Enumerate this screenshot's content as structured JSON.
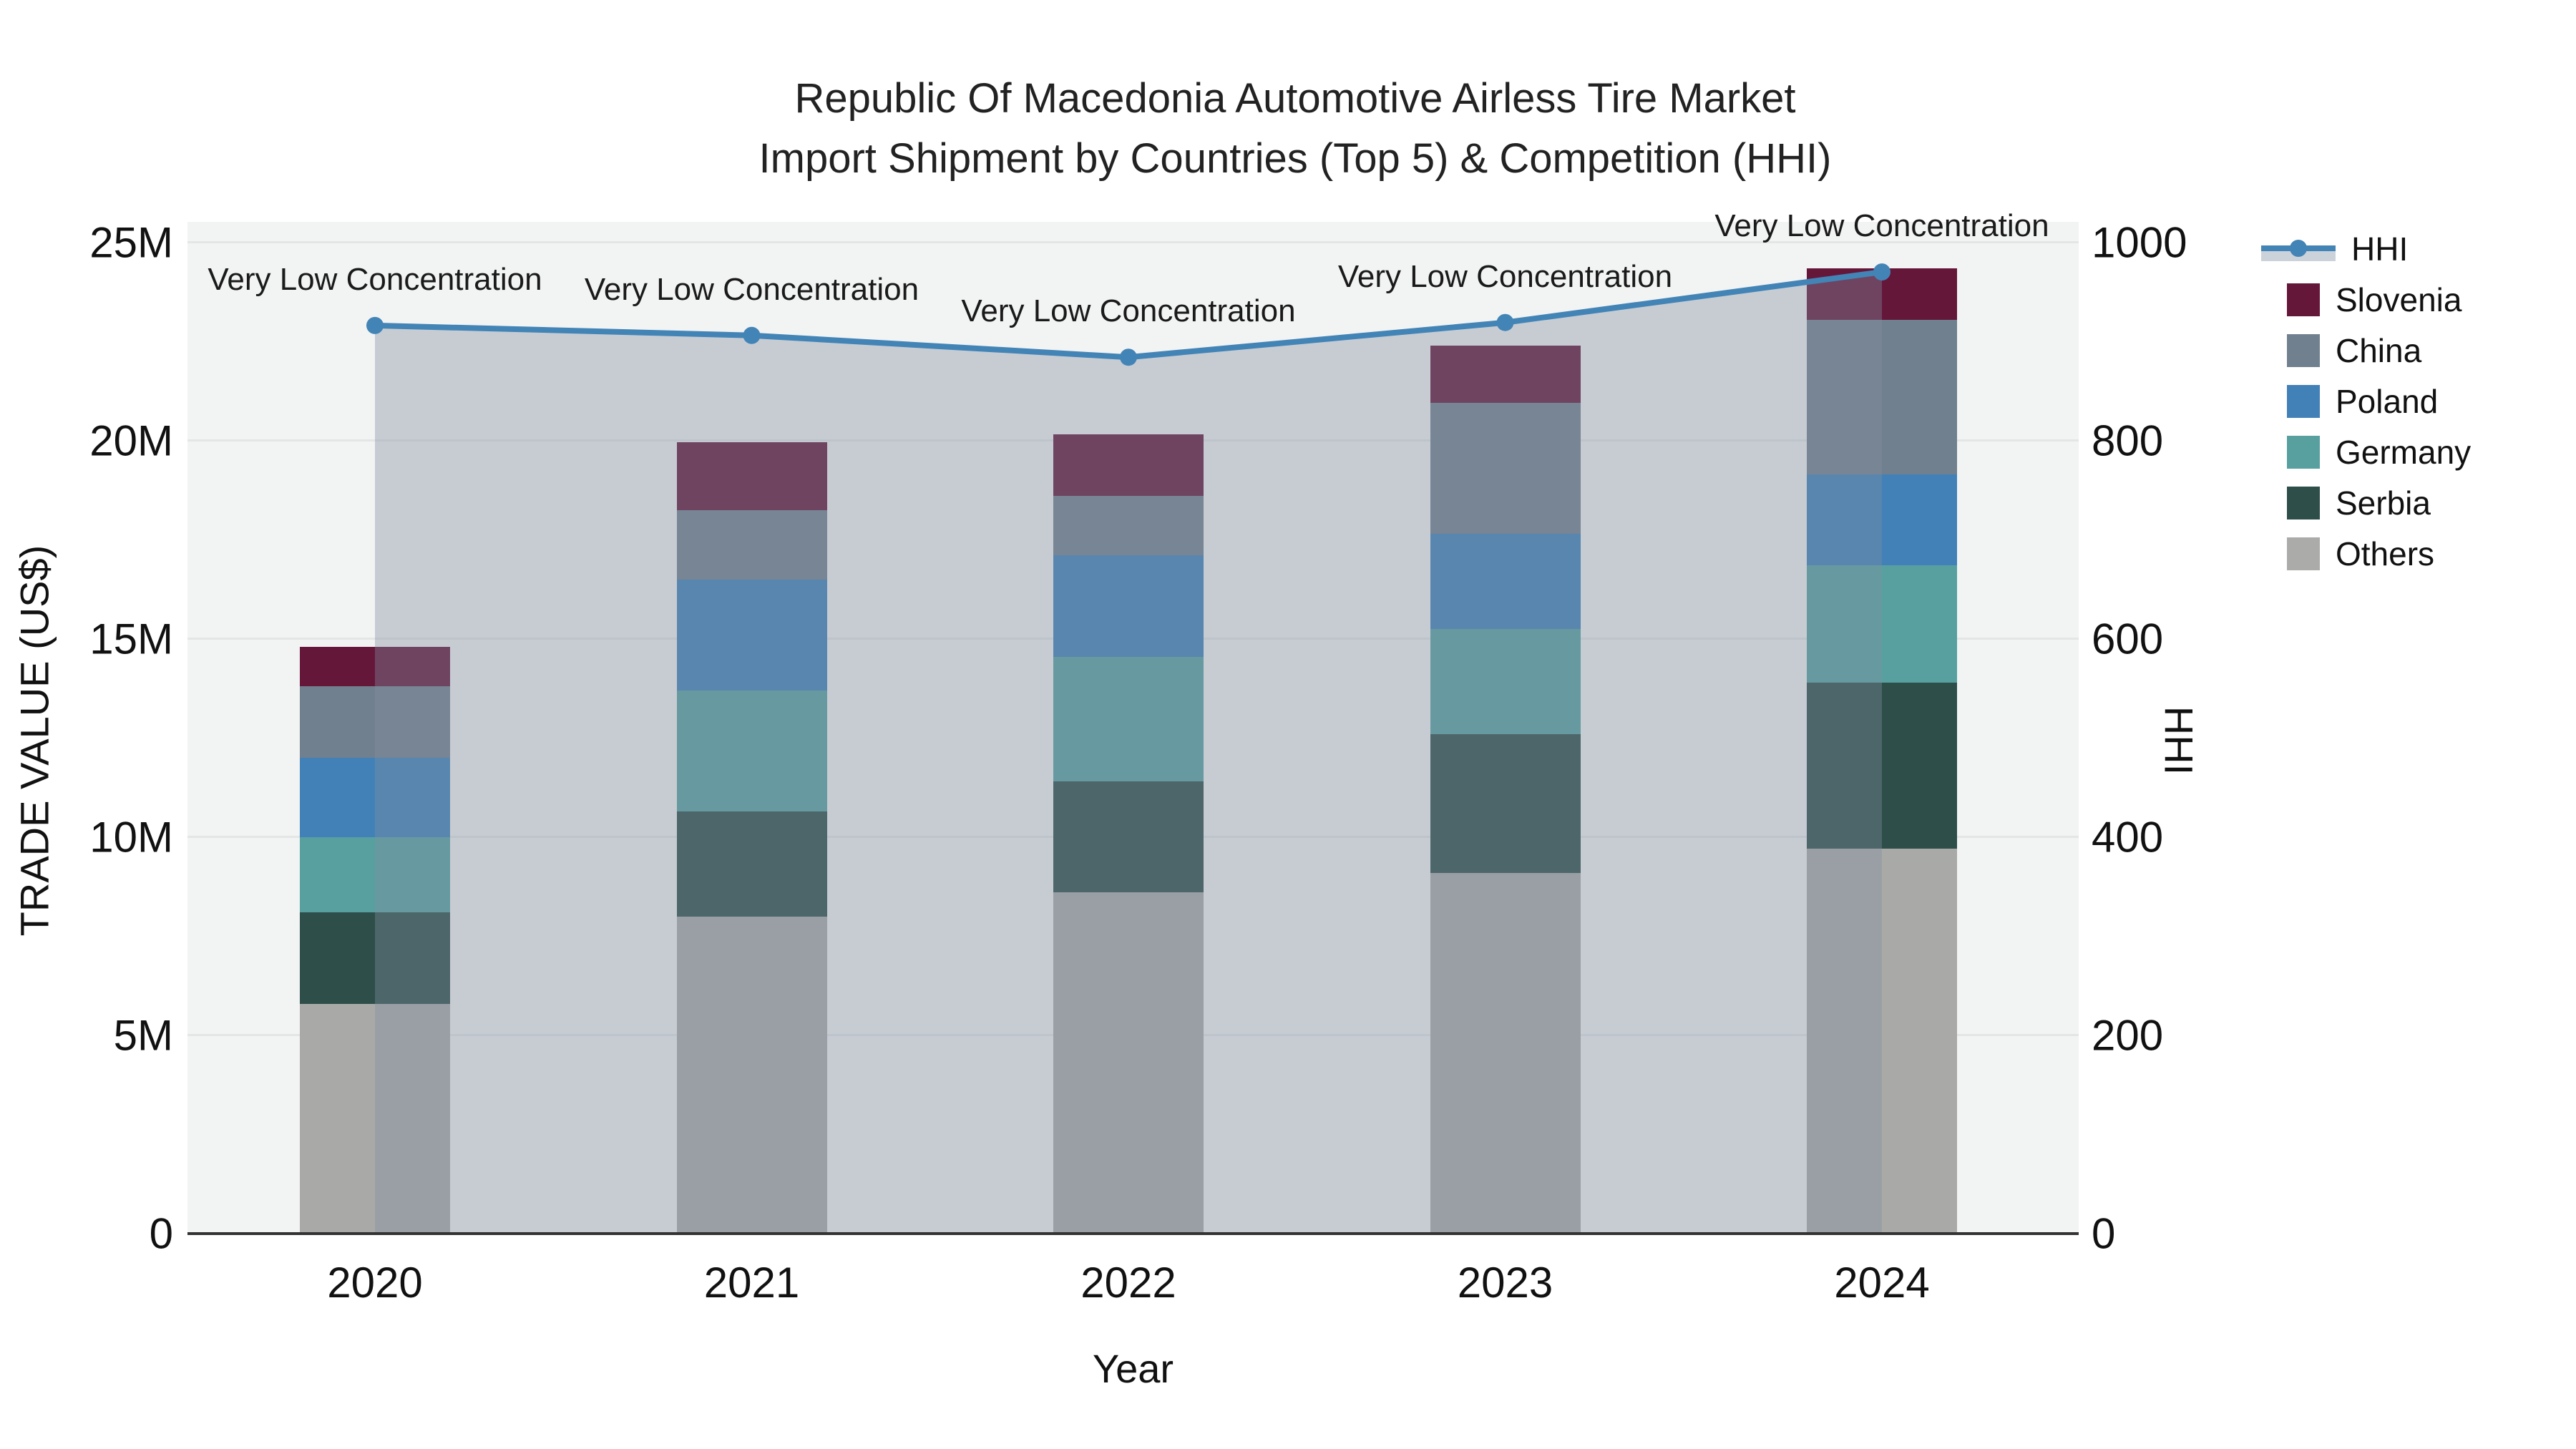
{
  "title": {
    "line1": "Republic Of Macedonia Automotive Airless Tire Market",
    "line2": "Import Shipment by Countries (Top 5) & Competition (HHI)"
  },
  "chart_data": {
    "type": "bar",
    "stacked": true,
    "orientation": "vertical",
    "categories": [
      "2020",
      "2021",
      "2022",
      "2023",
      "2024"
    ],
    "unit": "million US$",
    "series": [
      {
        "name": "Others",
        "color": "#a9aaa7",
        "values": [
          5.8,
          8.0,
          8.6,
          9.1,
          9.7
        ]
      },
      {
        "name": "Serbia",
        "color": "#2e4e4a",
        "values": [
          2.3,
          2.65,
          2.8,
          3.5,
          4.2
        ]
      },
      {
        "name": "Germany",
        "color": "#58a0a0",
        "values": [
          1.9,
          3.05,
          3.15,
          2.65,
          2.95
        ]
      },
      {
        "name": "Poland",
        "color": "#4281b7",
        "values": [
          2.0,
          2.8,
          2.55,
          2.4,
          2.3
        ]
      },
      {
        "name": "China",
        "color": "#71808f",
        "values": [
          1.8,
          1.75,
          1.5,
          3.3,
          3.9
        ]
      },
      {
        "name": "Slovenia",
        "color": "#65173a",
        "values": [
          1.0,
          1.7,
          1.55,
          1.45,
          1.3
        ]
      }
    ],
    "line_series": {
      "name": "HHI",
      "axis": "right",
      "color": "#4384b6",
      "area_fill_color": "rgba(130,142,160,0.38)",
      "values": [
        916,
        906,
        884,
        919,
        970
      ]
    },
    "annotations": [
      {
        "text": "Very Low Concentration",
        "x": "2020"
      },
      {
        "text": "Very Low Concentration",
        "x": "2021"
      },
      {
        "text": "Very Low Concentration",
        "x": "2022"
      },
      {
        "text": "Very Low Concentration",
        "x": "2023"
      },
      {
        "text": "Very Low Concentration",
        "x": "2024"
      }
    ],
    "left_axis": {
      "title": "TRADE VALUE (US$)",
      "tick_labels": [
        "0",
        "5M",
        "10M",
        "15M",
        "20M",
        "25M"
      ],
      "tick_values": [
        0,
        5,
        10,
        15,
        20,
        25
      ],
      "range_millions": [
        0,
        25.5
      ]
    },
    "right_axis": {
      "title": "HHI",
      "tick_labels": [
        "0",
        "200",
        "400",
        "600",
        "800",
        "1000"
      ],
      "tick_values": [
        0,
        200,
        400,
        600,
        800,
        1000
      ],
      "range": [
        0,
        1020
      ]
    },
    "x_axis": {
      "title": "Year"
    },
    "legend": [
      {
        "name": "HHI",
        "type": "line",
        "color": "#4384b6"
      },
      {
        "name": "Slovenia",
        "type": "swatch",
        "color": "#65173a"
      },
      {
        "name": "China",
        "type": "swatch",
        "color": "#71808f"
      },
      {
        "name": "Poland",
        "type": "swatch",
        "color": "#4281b7"
      },
      {
        "name": "Germany",
        "type": "swatch",
        "color": "#58a0a0"
      },
      {
        "name": "Serbia",
        "type": "swatch",
        "color": "#2e4e4a"
      },
      {
        "name": "Others",
        "type": "swatch",
        "color": "#ababa9"
      }
    ]
  },
  "style": {
    "plot_bg": "#f2f3f3",
    "page_bg": "#ffffff",
    "axis_line_color": "#333333",
    "gridline_color": "rgba(0,0,0,0.055)",
    "text_color": "#111111"
  }
}
